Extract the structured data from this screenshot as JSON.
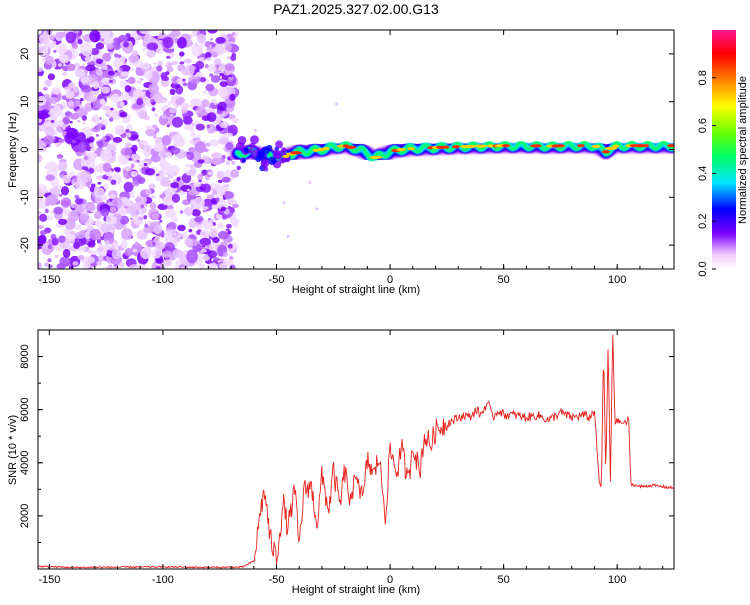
{
  "title": "PAZ1.2025.327.02.00.G13",
  "chart_data": [
    {
      "type": "heatmap",
      "title": "PAZ1.2025.327.02.00.G13",
      "xlabel": "Height of straight line (km)",
      "ylabel": "Frequency (Hz)",
      "xlim": [
        -155,
        125
      ],
      "ylim": [
        -25,
        25
      ],
      "xticks": [
        -150,
        -100,
        -50,
        0,
        50,
        100
      ],
      "yticks": [
        -20,
        -10,
        0,
        10,
        20
      ],
      "noise_region_x": [
        -155,
        -68
      ],
      "ridge": {
        "name": "Signal frequency ridge",
        "x": [
          -67,
          -62,
          -57,
          -52,
          -48,
          -44,
          -40,
          -35,
          -30,
          -25,
          -20,
          -15,
          -10,
          -7,
          -4,
          0,
          5,
          10,
          20,
          30,
          40,
          50,
          60,
          70,
          80,
          90,
          95,
          97,
          100,
          105,
          110,
          115,
          120,
          125
        ],
        "y": [
          -1.0,
          -0.5,
          -1.0,
          -1.5,
          -2.0,
          -1.0,
          -0.5,
          -0.3,
          0.0,
          0.5,
          0.8,
          0.2,
          -0.8,
          -1.8,
          -1.2,
          -0.5,
          0.0,
          0.2,
          0.4,
          0.6,
          0.7,
          0.8,
          0.8,
          0.7,
          0.8,
          0.8,
          -0.5,
          0.2,
          0.8,
          0.8,
          0.8,
          0.8,
          0.8,
          0.8
        ]
      },
      "colorbar": {
        "label": "Normalized spectral amplitude",
        "range": [
          0,
          1
        ],
        "ticks": [
          "0.0",
          "0.2",
          "0.4",
          "0.6",
          "0.8"
        ]
      }
    },
    {
      "type": "line",
      "title": "",
      "xlabel": "Height of straight line (km)",
      "ylabel": "SNR (10 * v/v)",
      "xlim": [
        -155,
        125
      ],
      "ylim": [
        0,
        9000
      ],
      "xticks": [
        -150,
        -100,
        -50,
        0,
        50,
        100
      ],
      "yticks": [
        2000,
        4000,
        6000,
        8000
      ],
      "series": [
        {
          "name": "SNR",
          "color": "#e8211d",
          "x": [
            -155,
            -140,
            -120,
            -100,
            -80,
            -65,
            -60,
            -58,
            -57,
            -55,
            -53,
            -50,
            -47,
            -45,
            -42,
            -40,
            -38,
            -35,
            -32,
            -30,
            -27,
            -25,
            -22,
            -20,
            -17,
            -15,
            -12,
            -10,
            -7,
            -5,
            -2,
            0,
            3,
            5,
            8,
            10,
            13,
            15,
            18,
            20,
            23,
            25,
            28,
            30,
            33,
            35,
            38,
            40,
            43,
            45,
            48,
            50,
            55,
            60,
            65,
            70,
            75,
            80,
            85,
            88,
            90,
            92,
            93,
            94,
            95,
            96,
            97,
            98,
            99,
            100,
            102,
            104,
            105,
            106,
            110,
            115,
            120,
            125
          ],
          "y": [
            100,
            60,
            70,
            80,
            60,
            70,
            300,
            1500,
            2300,
            2900,
            1200,
            400,
            2500,
            1500,
            3000,
            800,
            2900,
            3200,
            1700,
            3500,
            2200,
            3700,
            2400,
            3700,
            2300,
            3800,
            2500,
            4100,
            3500,
            4300,
            2000,
            4500,
            3600,
            4600,
            3200,
            4800,
            3600,
            5000,
            4700,
            5200,
            5400,
            5500,
            5600,
            5700,
            5800,
            5700,
            6000,
            5800,
            6300,
            5700,
            6000,
            5800,
            5800,
            5700,
            5800,
            5600,
            5900,
            5700,
            5800,
            5700,
            6000,
            3300,
            3000,
            8300,
            3500,
            8500,
            3200,
            9000,
            5500,
            5600,
            5500,
            5500,
            5700,
            3200,
            3100,
            3150,
            3100,
            3050
          ]
        }
      ]
    }
  ]
}
